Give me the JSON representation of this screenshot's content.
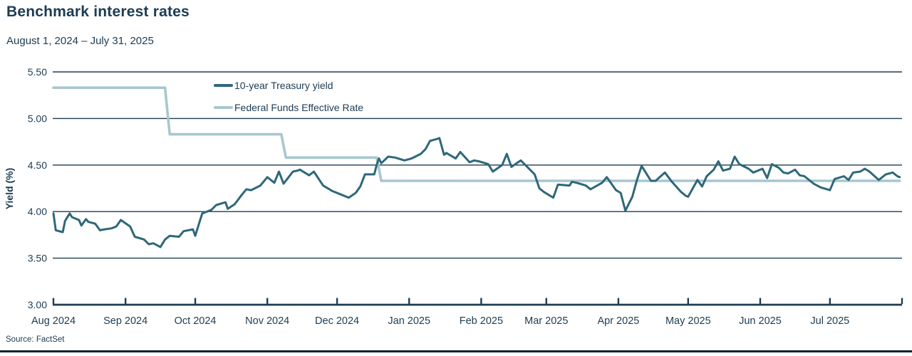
{
  "page": {
    "title": "Benchmark interest rates",
    "subtitle": "August 1, 2024 – July 31, 2025",
    "source": "Source: FactSet"
  },
  "colors": {
    "text": "#1d3c52",
    "grid": "#1d3c52",
    "axis": "#1d3c52",
    "footer_bar": "#13212e",
    "background": "#ffffff"
  },
  "chart_data": {
    "type": "line",
    "title": "Benchmark interest rates",
    "subtitle": "August 1, 2024 – July 31, 2025",
    "xlabel": "",
    "ylabel": "Yield (%)",
    "ylim": [
      3.0,
      5.5
    ],
    "yticks": [
      3.0,
      3.5,
      4.0,
      4.5,
      5.0,
      5.5
    ],
    "ytick_format": "2dp",
    "grid": "horizontal",
    "legend_position": "top-left-inside",
    "x_range": [
      "2024-08-01",
      "2025-08-01"
    ],
    "x_ticks": [
      {
        "date": "2024-08-01",
        "label": "Aug 2024"
      },
      {
        "date": "2024-09-01",
        "label": "Sep 2024"
      },
      {
        "date": "2024-10-01",
        "label": "Oct 2024"
      },
      {
        "date": "2024-11-01",
        "label": "Nov 2024"
      },
      {
        "date": "2024-12-01",
        "label": "Dec 2024"
      },
      {
        "date": "2025-01-01",
        "label": "Jan 2025"
      },
      {
        "date": "2025-02-01",
        "label": "Feb 2025"
      },
      {
        "date": "2025-03-01",
        "label": "Mar 2025"
      },
      {
        "date": "2025-04-01",
        "label": "Apr 2025"
      },
      {
        "date": "2025-05-01",
        "label": "May 2025"
      },
      {
        "date": "2025-06-01",
        "label": "Jun 2025"
      },
      {
        "date": "2025-07-01",
        "label": "Jul 2025"
      },
      {
        "date": "2025-08-01",
        "label": ""
      }
    ],
    "series": [
      {
        "name": "10-year Treasury yield",
        "color": "#2e6879",
        "stroke_width": 3,
        "points": [
          [
            "2024-08-01",
            3.98
          ],
          [
            "2024-08-02",
            3.8
          ],
          [
            "2024-08-05",
            3.78
          ],
          [
            "2024-08-06",
            3.9
          ],
          [
            "2024-08-08",
            3.98
          ],
          [
            "2024-08-09",
            3.94
          ],
          [
            "2024-08-12",
            3.91
          ],
          [
            "2024-08-13",
            3.85
          ],
          [
            "2024-08-15",
            3.92
          ],
          [
            "2024-08-16",
            3.89
          ],
          [
            "2024-08-19",
            3.87
          ],
          [
            "2024-08-21",
            3.8
          ],
          [
            "2024-08-23",
            3.81
          ],
          [
            "2024-08-26",
            3.82
          ],
          [
            "2024-08-28",
            3.84
          ],
          [
            "2024-08-30",
            3.91
          ],
          [
            "2024-09-03",
            3.84
          ],
          [
            "2024-09-05",
            3.73
          ],
          [
            "2024-09-09",
            3.7
          ],
          [
            "2024-09-11",
            3.65
          ],
          [
            "2024-09-13",
            3.66
          ],
          [
            "2024-09-16",
            3.62
          ],
          [
            "2024-09-18",
            3.7
          ],
          [
            "2024-09-20",
            3.74
          ],
          [
            "2024-09-24",
            3.73
          ],
          [
            "2024-09-26",
            3.79
          ],
          [
            "2024-09-30",
            3.81
          ],
          [
            "2024-10-01",
            3.74
          ],
          [
            "2024-10-04",
            3.98
          ],
          [
            "2024-10-08",
            4.02
          ],
          [
            "2024-10-10",
            4.07
          ],
          [
            "2024-10-14",
            4.1
          ],
          [
            "2024-10-15",
            4.03
          ],
          [
            "2024-10-18",
            4.08
          ],
          [
            "2024-10-21",
            4.18
          ],
          [
            "2024-10-23",
            4.24
          ],
          [
            "2024-10-25",
            4.23
          ],
          [
            "2024-10-29",
            4.28
          ],
          [
            "2024-11-01",
            4.37
          ],
          [
            "2024-11-04",
            4.31
          ],
          [
            "2024-11-06",
            4.43
          ],
          [
            "2024-11-08",
            4.3
          ],
          [
            "2024-11-12",
            4.43
          ],
          [
            "2024-11-14",
            4.44
          ],
          [
            "2024-11-15",
            4.45
          ],
          [
            "2024-11-19",
            4.39
          ],
          [
            "2024-11-21",
            4.43
          ],
          [
            "2024-11-25",
            4.28
          ],
          [
            "2024-11-29",
            4.22
          ],
          [
            "2024-12-02",
            4.19
          ],
          [
            "2024-12-06",
            4.15
          ],
          [
            "2024-12-09",
            4.2
          ],
          [
            "2024-12-11",
            4.27
          ],
          [
            "2024-12-13",
            4.4
          ],
          [
            "2024-12-17",
            4.4
          ],
          [
            "2024-12-18",
            4.5
          ],
          [
            "2024-12-19",
            4.57
          ],
          [
            "2024-12-20",
            4.52
          ],
          [
            "2024-12-23",
            4.59
          ],
          [
            "2024-12-26",
            4.58
          ],
          [
            "2024-12-30",
            4.55
          ],
          [
            "2025-01-02",
            4.57
          ],
          [
            "2025-01-06",
            4.62
          ],
          [
            "2025-01-08",
            4.67
          ],
          [
            "2025-01-10",
            4.76
          ],
          [
            "2025-01-13",
            4.78
          ],
          [
            "2025-01-14",
            4.79
          ],
          [
            "2025-01-16",
            4.61
          ],
          [
            "2025-01-17",
            4.63
          ],
          [
            "2025-01-21",
            4.57
          ],
          [
            "2025-01-23",
            4.64
          ],
          [
            "2025-01-27",
            4.53
          ],
          [
            "2025-01-29",
            4.55
          ],
          [
            "2025-01-31",
            4.54
          ],
          [
            "2025-02-04",
            4.51
          ],
          [
            "2025-02-06",
            4.43
          ],
          [
            "2025-02-10",
            4.5
          ],
          [
            "2025-02-12",
            4.62
          ],
          [
            "2025-02-14",
            4.48
          ],
          [
            "2025-02-18",
            4.55
          ],
          [
            "2025-02-20",
            4.5
          ],
          [
            "2025-02-24",
            4.4
          ],
          [
            "2025-02-26",
            4.25
          ],
          [
            "2025-02-28",
            4.21
          ],
          [
            "2025-03-04",
            4.15
          ],
          [
            "2025-03-06",
            4.29
          ],
          [
            "2025-03-11",
            4.28
          ],
          [
            "2025-03-12",
            4.32
          ],
          [
            "2025-03-14",
            4.31
          ],
          [
            "2025-03-18",
            4.28
          ],
          [
            "2025-03-20",
            4.24
          ],
          [
            "2025-03-25",
            4.31
          ],
          [
            "2025-03-27",
            4.37
          ],
          [
            "2025-03-31",
            4.23
          ],
          [
            "2025-04-02",
            4.2
          ],
          [
            "2025-04-04",
            4.01
          ],
          [
            "2025-04-07",
            4.16
          ],
          [
            "2025-04-09",
            4.34
          ],
          [
            "2025-04-11",
            4.49
          ],
          [
            "2025-04-15",
            4.33
          ],
          [
            "2025-04-17",
            4.33
          ],
          [
            "2025-04-21",
            4.42
          ],
          [
            "2025-04-24",
            4.32
          ],
          [
            "2025-04-28",
            4.21
          ],
          [
            "2025-04-30",
            4.17
          ],
          [
            "2025-05-01",
            4.16
          ],
          [
            "2025-05-05",
            4.34
          ],
          [
            "2025-05-07",
            4.27
          ],
          [
            "2025-05-09",
            4.38
          ],
          [
            "2025-05-12",
            4.45
          ],
          [
            "2025-05-14",
            4.54
          ],
          [
            "2025-05-16",
            4.44
          ],
          [
            "2025-05-19",
            4.46
          ],
          [
            "2025-05-21",
            4.59
          ],
          [
            "2025-05-23",
            4.51
          ],
          [
            "2025-05-27",
            4.46
          ],
          [
            "2025-05-29",
            4.42
          ],
          [
            "2025-06-02",
            4.46
          ],
          [
            "2025-06-04",
            4.36
          ],
          [
            "2025-06-06",
            4.51
          ],
          [
            "2025-06-09",
            4.47
          ],
          [
            "2025-06-11",
            4.42
          ],
          [
            "2025-06-13",
            4.41
          ],
          [
            "2025-06-16",
            4.45
          ],
          [
            "2025-06-18",
            4.39
          ],
          [
            "2025-06-20",
            4.38
          ],
          [
            "2025-06-24",
            4.3
          ],
          [
            "2025-06-27",
            4.26
          ],
          [
            "2025-07-01",
            4.23
          ],
          [
            "2025-07-03",
            4.35
          ],
          [
            "2025-07-07",
            4.38
          ],
          [
            "2025-07-09",
            4.34
          ],
          [
            "2025-07-11",
            4.42
          ],
          [
            "2025-07-14",
            4.43
          ],
          [
            "2025-07-16",
            4.46
          ],
          [
            "2025-07-18",
            4.43
          ],
          [
            "2025-07-22",
            4.34
          ],
          [
            "2025-07-25",
            4.4
          ],
          [
            "2025-07-28",
            4.42
          ],
          [
            "2025-07-30",
            4.38
          ],
          [
            "2025-07-31",
            4.37
          ]
        ]
      },
      {
        "name": "Federal Funds Effective Rate",
        "color": "#a7c7cf",
        "stroke_width": 3.6,
        "points": [
          [
            "2024-08-01",
            5.33
          ],
          [
            "2024-09-18",
            5.33
          ],
          [
            "2024-09-20",
            4.83
          ],
          [
            "2024-11-07",
            4.83
          ],
          [
            "2024-11-09",
            4.58
          ],
          [
            "2024-12-18",
            4.58
          ],
          [
            "2024-12-20",
            4.33
          ],
          [
            "2025-07-31",
            4.33
          ]
        ]
      }
    ],
    "source": "Source: FactSet"
  }
}
